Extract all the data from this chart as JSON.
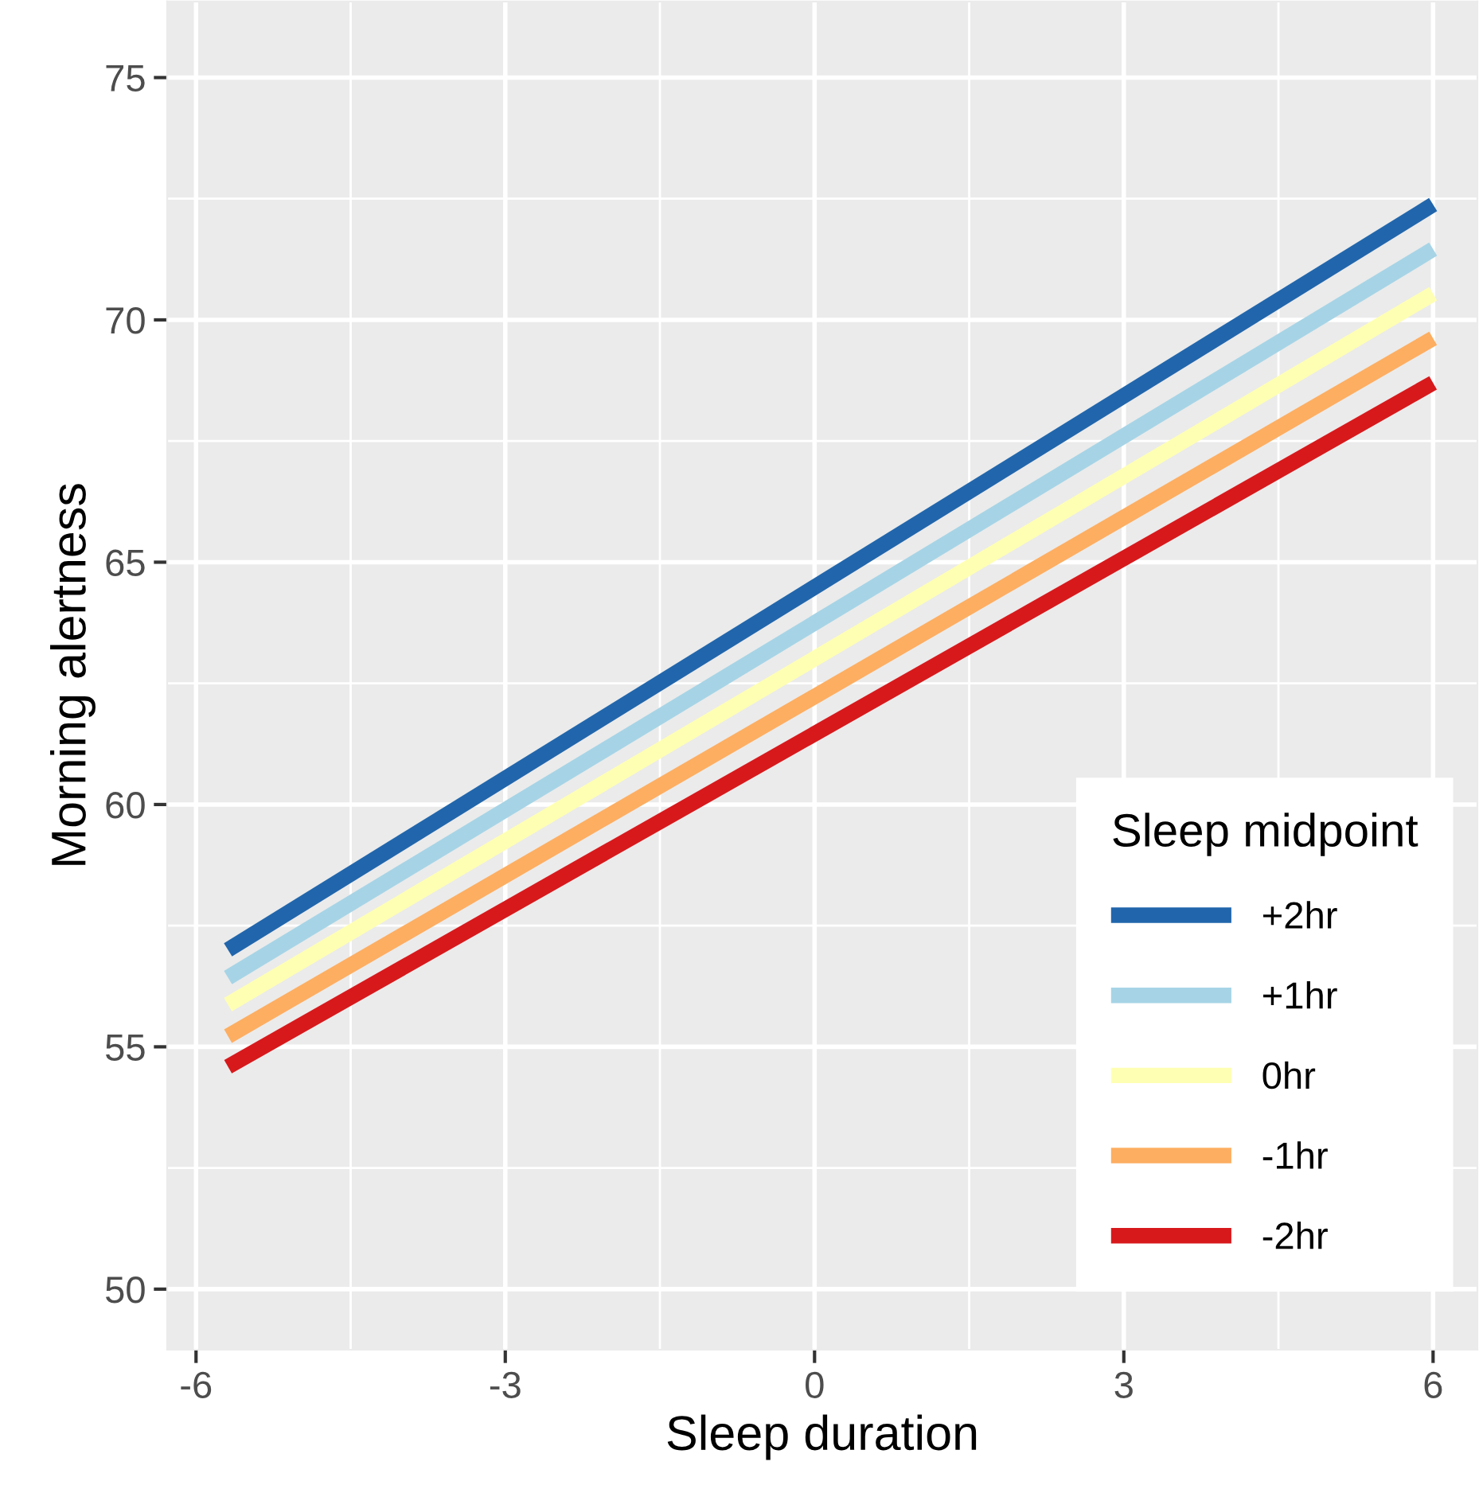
{
  "chart_data": {
    "type": "line",
    "xlabel": "Sleep duration",
    "ylabel": "Morning alertness",
    "legend_title": "Sleep midpoint",
    "xlim": [
      -6.28,
      6.43
    ],
    "ylim": [
      48.75,
      76.57
    ],
    "xticks": [
      -6,
      -3,
      0,
      3,
      6
    ],
    "yticks": [
      50,
      55,
      60,
      65,
      70,
      75
    ],
    "grid": true,
    "legend": "bottom right",
    "line_style": "solid",
    "x": [
      -5.69,
      6.0
    ],
    "series": [
      {
        "name": "+2hr",
        "color": "#2166ac",
        "values": [
          57.0,
          72.38
        ]
      },
      {
        "name": "+1hr",
        "color": "#a6d4e6",
        "values": [
          56.43,
          71.46
        ]
      },
      {
        "name": "0hr",
        "color": "#ffffb3",
        "values": [
          55.87,
          70.54
        ]
      },
      {
        "name": "-1hr",
        "color": "#fdae61",
        "values": [
          55.22,
          69.62
        ]
      },
      {
        "name": "-2hr",
        "color": "#d7191c",
        "values": [
          54.59,
          68.7
        ]
      }
    ]
  }
}
